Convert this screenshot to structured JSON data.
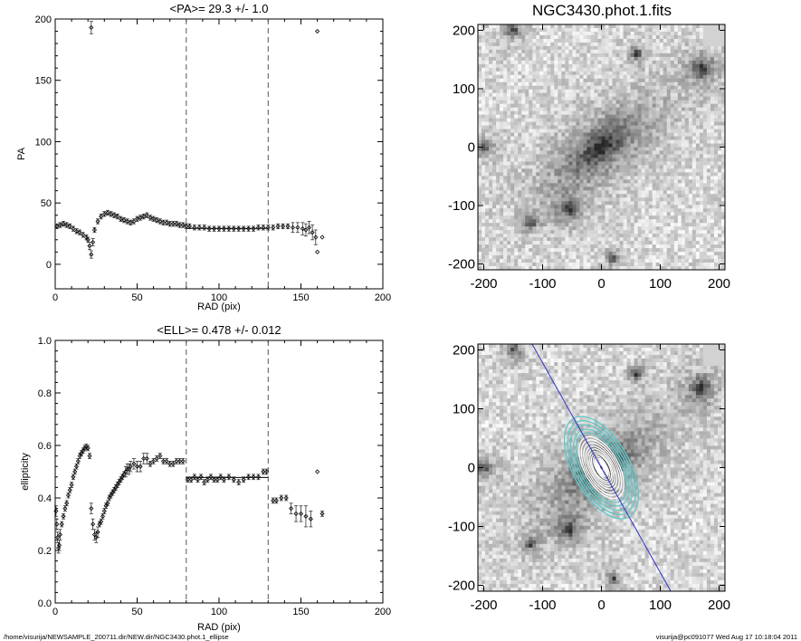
{
  "chart_data": [
    {
      "type": "scatter",
      "title": "<PA>=  29.3 +/-   1.0",
      "xlabel": "RAD (pix)",
      "ylabel": "PA",
      "xlim": [
        0,
        200
      ],
      "ylim": [
        -20,
        200
      ],
      "xticks": [
        "0",
        "50",
        "100",
        "150",
        "200"
      ],
      "yticks": [
        "0",
        "50",
        "100",
        "150",
        "200"
      ],
      "vlines": [
        80,
        130
      ],
      "hline": {
        "value": 29.3,
        "from": 80,
        "to": 130
      },
      "series": [
        {
          "x": [
            1,
            3,
            5,
            7,
            9,
            11,
            13,
            15,
            17,
            19,
            20,
            21,
            22,
            23,
            24,
            26,
            28,
            30,
            32,
            34,
            36,
            38,
            40,
            42,
            44,
            46,
            48,
            50,
            52,
            54,
            56,
            58,
            60,
            62,
            64,
            66,
            68,
            70,
            72,
            74,
            76,
            78,
            80,
            82,
            85,
            88,
            91,
            94,
            97,
            100,
            103,
            106,
            109,
            112,
            115,
            118,
            121,
            124,
            127,
            130,
            133,
            136,
            139,
            142,
            145,
            148,
            151,
            153,
            155,
            157,
            159,
            160,
            163,
            22,
            160
          ],
          "y": [
            31,
            32,
            33,
            32,
            31,
            29,
            27,
            26,
            24,
            22,
            20,
            15,
            8,
            18,
            28,
            35,
            39,
            41,
            42,
            41,
            40,
            39,
            37,
            36,
            35,
            34,
            35,
            37,
            38,
            39,
            40,
            38,
            37,
            36,
            35,
            34,
            34,
            33,
            33,
            33,
            32,
            32,
            31,
            31,
            30,
            30,
            30,
            29,
            29,
            29,
            29,
            29,
            29,
            29,
            29,
            29,
            29,
            30,
            30,
            30,
            30,
            31,
            31,
            31,
            30,
            30,
            29,
            28,
            30,
            26,
            22,
            10,
            22,
            193,
            190
          ],
          "yerr": [
            2,
            2,
            2,
            2,
            2,
            2,
            2,
            2,
            2,
            2,
            2,
            3,
            3,
            3,
            2,
            2,
            2,
            2,
            2,
            2,
            2,
            2,
            2,
            2,
            2,
            2,
            2,
            2,
            2,
            2,
            2,
            2,
            2,
            2,
            2,
            2,
            2,
            2,
            2,
            2,
            2,
            2,
            2,
            2,
            2,
            2,
            2,
            2,
            2,
            2,
            2,
            2,
            2,
            2,
            2,
            2,
            2,
            2,
            2,
            2,
            2,
            2,
            2,
            2,
            4,
            4,
            5,
            5,
            5,
            6,
            6,
            0,
            0,
            5,
            0
          ]
        }
      ]
    },
    {
      "type": "image",
      "title": "NGC3430.phot.1.fits",
      "xlim": [
        -210,
        210
      ],
      "ylim": [
        -210,
        210
      ],
      "xticks": [
        "-200",
        "-100",
        "0",
        "100",
        "200"
      ],
      "yticks": [
        "200",
        "100",
        "0",
        "-100",
        "-200"
      ]
    },
    {
      "type": "scatter",
      "title": "<ELL>= 0.478 +/-  0.012",
      "xlabel": "RAD (pix)",
      "ylabel": "ellipticity",
      "xlim": [
        0,
        200
      ],
      "ylim": [
        0,
        1.0
      ],
      "xticks": [
        "0",
        "50",
        "100",
        "150",
        "200"
      ],
      "yticks": [
        "0.0",
        "0.2",
        "0.4",
        "0.6",
        "0.8",
        "1.0"
      ],
      "vlines": [
        80,
        130
      ],
      "hline": {
        "value": 0.478,
        "from": 80,
        "to": 130
      },
      "series": [
        {
          "x": [
            0.5,
            1,
            1.5,
            2,
            2.5,
            3,
            4,
            5,
            6,
            7,
            8,
            9,
            10,
            11,
            12,
            13,
            14,
            15,
            16,
            17,
            18,
            19,
            20,
            21,
            22,
            23,
            24,
            25,
            26,
            27,
            28,
            29,
            30,
            31,
            32,
            33,
            34,
            35,
            36,
            37,
            38,
            39,
            40,
            41,
            42,
            43,
            44,
            45,
            46,
            48,
            50,
            52,
            54,
            56,
            58,
            60,
            62,
            64,
            66,
            68,
            70,
            72,
            74,
            76,
            78,
            81,
            83,
            85,
            87,
            89,
            91,
            93,
            95,
            97,
            99,
            101,
            103,
            106,
            109,
            112,
            115,
            118,
            121,
            124,
            127,
            129,
            133,
            135,
            138,
            141,
            144,
            147,
            150,
            153,
            156,
            160,
            163
          ],
          "y": [
            0.35,
            0.3,
            0.25,
            0.21,
            0.22,
            0.26,
            0.3,
            0.33,
            0.36,
            0.38,
            0.41,
            0.43,
            0.45,
            0.48,
            0.5,
            0.52,
            0.54,
            0.56,
            0.57,
            0.58,
            0.59,
            0.595,
            0.59,
            0.56,
            0.36,
            0.3,
            0.26,
            0.25,
            0.27,
            0.3,
            0.31,
            0.33,
            0.35,
            0.37,
            0.38,
            0.4,
            0.41,
            0.42,
            0.43,
            0.44,
            0.45,
            0.46,
            0.47,
            0.48,
            0.49,
            0.5,
            0.51,
            0.51,
            0.52,
            0.53,
            0.52,
            0.52,
            0.55,
            0.55,
            0.53,
            0.54,
            0.55,
            0.56,
            0.54,
            0.54,
            0.53,
            0.53,
            0.54,
            0.54,
            0.54,
            0.47,
            0.47,
            0.48,
            0.47,
            0.48,
            0.46,
            0.47,
            0.48,
            0.47,
            0.47,
            0.48,
            0.47,
            0.48,
            0.47,
            0.46,
            0.47,
            0.48,
            0.48,
            0.48,
            0.5,
            0.5,
            0.39,
            0.39,
            0.4,
            0.4,
            0.36,
            0.34,
            0.34,
            0.33,
            0.32,
            0.5,
            0.34
          ],
          "yerr": [
            0.02,
            0.02,
            0.02,
            0.02,
            0.02,
            0.02,
            0.01,
            0.01,
            0.01,
            0.01,
            0.01,
            0.01,
            0.01,
            0.01,
            0.01,
            0.01,
            0.01,
            0.01,
            0.01,
            0.01,
            0.01,
            0.01,
            0.01,
            0.01,
            0.02,
            0.02,
            0.02,
            0.02,
            0.02,
            0.01,
            0.01,
            0.01,
            0.01,
            0.01,
            0.01,
            0.01,
            0.01,
            0.01,
            0.01,
            0.01,
            0.01,
            0.01,
            0.01,
            0.01,
            0.01,
            0.02,
            0.02,
            0.02,
            0.02,
            0.02,
            0.02,
            0.02,
            0.02,
            0.02,
            0.01,
            0.01,
            0.01,
            0.01,
            0.01,
            0.01,
            0.01,
            0.01,
            0.01,
            0.01,
            0.01,
            0.01,
            0.01,
            0.01,
            0.01,
            0.01,
            0.01,
            0.01,
            0.01,
            0.01,
            0.01,
            0.01,
            0.01,
            0.01,
            0.01,
            0.01,
            0.01,
            0.01,
            0.01,
            0.01,
            0.01,
            0.01,
            0.01,
            0.01,
            0.01,
            0.01,
            0.02,
            0.03,
            0.03,
            0.04,
            0.03,
            0,
            0.01
          ]
        }
      ]
    },
    {
      "type": "image",
      "xlim": [
        -210,
        210
      ],
      "ylim": [
        -210,
        210
      ],
      "xticks": [
        "-200",
        "-100",
        "0",
        "100",
        "200"
      ],
      "yticks": [
        "200",
        "100",
        "0",
        "-100",
        "-200"
      ],
      "colors": {
        "contour_outer": "#5fc9c9",
        "contour_inner": "#ffffff",
        "pa_line": "#3030c8"
      }
    }
  ],
  "footer": {
    "left": "/home/visurija/NEWSAMPLE_200711.dir/NEW.dir/NGC3430.phot.1_ellipse",
    "right": "visurija@pc091077  Wed Aug 17 10:18:04 2011"
  }
}
